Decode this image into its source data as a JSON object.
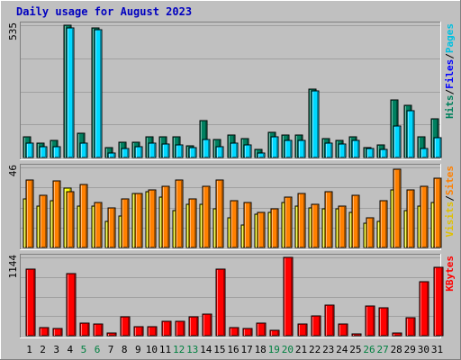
{
  "chart_data": {
    "type": "bar",
    "title": "Daily usage for August 2023",
    "categories": [
      "1",
      "2",
      "3",
      "4",
      "5",
      "6",
      "7",
      "8",
      "9",
      "10",
      "11",
      "12",
      "13",
      "14",
      "15",
      "16",
      "17",
      "18",
      "19",
      "20",
      "21",
      "22",
      "23",
      "24",
      "25",
      "26",
      "27",
      "28",
      "29",
      "30",
      "31"
    ],
    "weekend_days": [
      "5",
      "6",
      "12",
      "13",
      "19",
      "20",
      "26",
      "27"
    ],
    "panels": [
      {
        "id": "top",
        "ymax_label": "535",
        "ylim": [
          0,
          535
        ],
        "right_labels": [
          {
            "text": "Hits",
            "color": "#00805c"
          },
          {
            "text": "Files",
            "color": "#0000ff"
          },
          {
            "text": "Pages",
            "color": "#00c0e0"
          }
        ],
        "series": [
          {
            "name": "Hits",
            "color": "#008060",
            "values": [
              82,
              60,
              68,
              535,
              98,
              523,
              40,
              62,
              63,
              85,
              82,
              82,
              48,
              148,
              72,
              90,
              75,
              32,
              103,
              90,
              90,
              275,
              75,
              68,
              82,
              40,
              50,
              233,
              210,
              85,
              155
            ]
          },
          {
            "name": "Pages",
            "color": "#00d8ff",
            "values": [
              58,
              45,
              43,
              523,
              58,
              518,
              20,
              35,
              42,
              57,
              55,
              52,
              40,
              72,
              45,
              60,
              52,
              20,
              82,
              68,
              68,
              270,
              60,
              55,
              68,
              35,
              32,
              128,
              190,
              38,
              80
            ]
          }
        ]
      },
      {
        "id": "middle",
        "ymax_label": "46",
        "ylim": [
          0,
          46
        ],
        "right_labels": [
          {
            "text": "Visits",
            "color": "#e0c000"
          },
          {
            "text": "Sites",
            "color": "#ff8000"
          }
        ],
        "series": [
          {
            "name": "Visits",
            "color": "#ffff00",
            "values": [
              28,
              24,
              27,
              34,
              24,
              24,
              15,
              18,
              31,
              32,
              29,
              21,
              25,
              25,
              22,
              17,
              13,
              19,
              20,
              26,
              24,
              23,
              22,
              22,
              20,
              14,
              15,
              33,
              21,
              24,
              26
            ]
          },
          {
            "name": "Sites",
            "color": "#ff8000",
            "values": [
              39,
              30,
              38,
              32,
              36,
              26,
              23,
              28,
              31,
              33,
              35,
              39,
              28,
              35,
              39,
              27,
              26,
              20,
              22,
              29,
              31,
              25,
              32,
              24,
              30,
              17,
              27,
              45,
              33,
              35,
              40
            ]
          }
        ]
      },
      {
        "id": "bottom",
        "ymax_label": "1144",
        "ylim": [
          0,
          1144
        ],
        "right_labels": [
          {
            "text": "KBytes",
            "color": "#ff0000"
          }
        ],
        "series": [
          {
            "name": "KBytes",
            "color": "#ff0000",
            "values": [
              970,
              115,
              105,
              910,
              180,
              165,
              35,
              280,
              125,
              135,
              210,
              215,
              275,
              310,
              970,
              115,
              100,
              185,
              85,
              1144,
              175,
              290,
              450,
              175,
              30,
              440,
              405,
              40,
              265,
              790,
              1000
            ]
          }
        ]
      }
    ],
    "day_label_colors": {
      "weekday": "#000000",
      "weekend": "#008040"
    }
  }
}
